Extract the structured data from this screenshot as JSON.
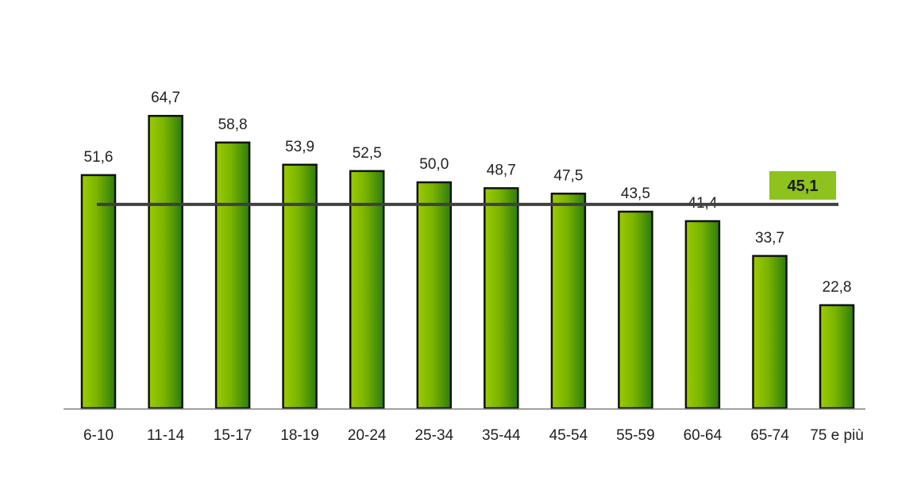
{
  "chart_data": {
    "type": "bar",
    "title": "",
    "xlabel": "",
    "ylabel": "",
    "categories": [
      "6-10",
      "11-14",
      "15-17",
      "18-19",
      "20-24",
      "25-34",
      "35-44",
      "45-54",
      "55-59",
      "60-64",
      "65-74",
      "75 e più"
    ],
    "values": [
      51.6,
      64.7,
      58.8,
      53.9,
      52.5,
      50.0,
      48.7,
      47.5,
      43.5,
      41.4,
      33.7,
      22.8
    ],
    "value_labels": [
      "51,6",
      "64,7",
      "58,8",
      "53,9",
      "52,5",
      "50,0",
      "48,7",
      "47,5",
      "43,5",
      "41,4",
      "33,7",
      "22,8"
    ],
    "average": {
      "value": 45.1,
      "label": "45,1"
    },
    "ylim": [
      0,
      70
    ],
    "grid": false,
    "legend": "none",
    "colors": {
      "bar_light": "#9ccc00",
      "bar_dark": "#2e7d0e",
      "bar_border": "#111111",
      "average_line": "#404040",
      "average_box": "#8dc21f",
      "axis": "#808080"
    }
  }
}
